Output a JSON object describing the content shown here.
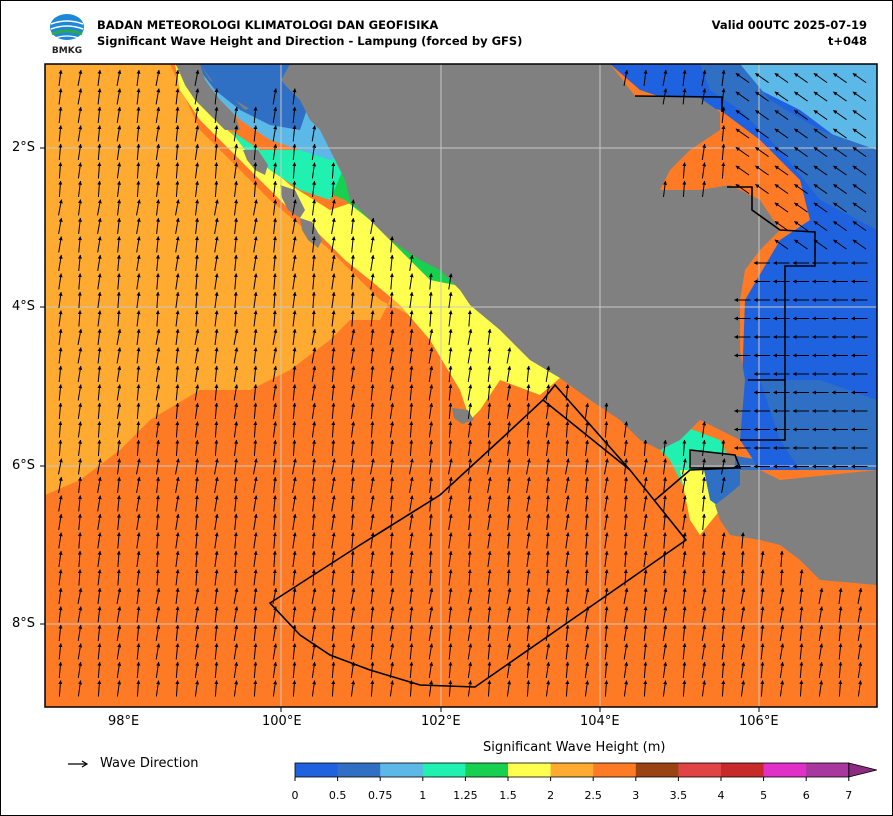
{
  "header": {
    "agency": "BADAN METEOROLOGI KLIMATOLOGI DAN GEOFISIKA",
    "product": "Significant Wave Height and Direction - Lampung (forced by GFS)",
    "valid": "Valid 00UTC 2025-07-19",
    "lead": "t+048",
    "logo_text": "BMKG"
  },
  "axes": {
    "lat_labels": [
      "2°S",
      "4°S",
      "6°S",
      "8°S"
    ],
    "lon_labels": [
      "98°E",
      "100°E",
      "102°E",
      "104°E",
      "106°E"
    ],
    "lat_range": [
      -9.05,
      -1.0
    ],
    "lon_range": [
      97.0,
      107.5
    ],
    "grid": true
  },
  "legend": {
    "label": "Wave Direction",
    "icon": "arrow-right-icon"
  },
  "colorbar": {
    "title": "Significant Wave Height (m)",
    "ticks": [
      "0",
      "0.5",
      "0.75",
      "1",
      "1.25",
      "1.5",
      "2",
      "2.5",
      "3",
      "3.5",
      "4",
      "5",
      "6",
      "7"
    ],
    "colors": [
      "#1f62e0",
      "#2f6fc4",
      "#5cb8e6",
      "#20f0b0",
      "#18d050",
      "#ffff50",
      "#ffaa30",
      "#ff7a25",
      "#9a4414",
      "#e04444",
      "#c82a2a",
      "#e030c8",
      "#a838a0"
    ],
    "extend_color": "#8c2c80"
  },
  "map_colors": {
    "land": "#808080",
    "offshore_high": "#ff7a25",
    "offshore_mid": "#ffaa30",
    "coastal": "#ffff50",
    "shallow_green": "#18d050",
    "shallow_teal": "#20f0b0",
    "light_blue": "#5cb8e6",
    "mid_blue": "#2f6fc4",
    "calm_blue": "#1f62e0"
  }
}
